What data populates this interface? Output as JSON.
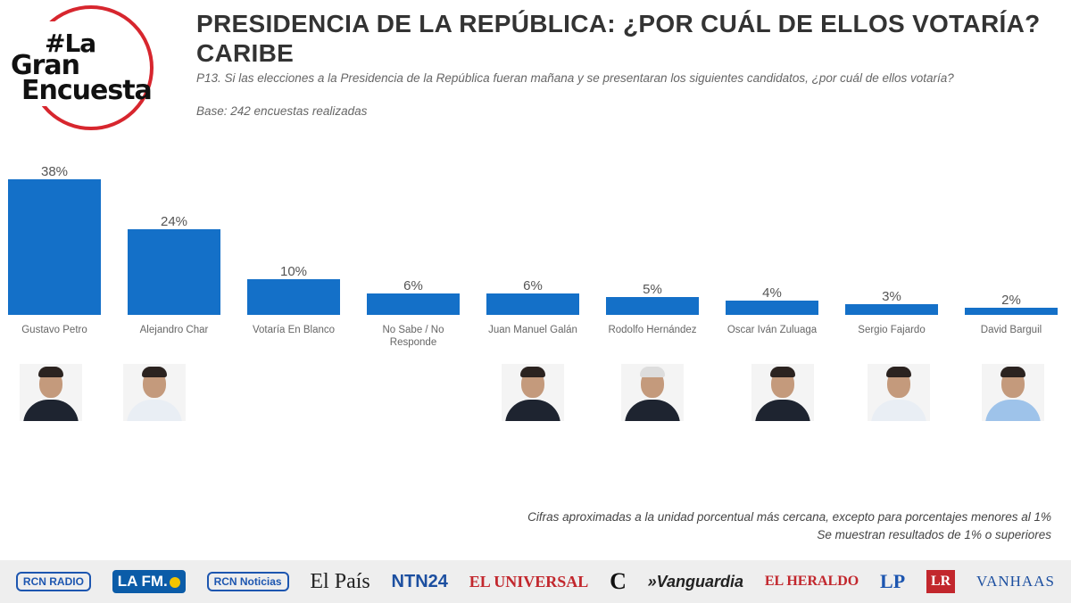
{
  "logo": {
    "line1": "#La",
    "line2": "Gran",
    "line3": "Encuesta"
  },
  "header": {
    "title_line1": "PRESIDENCIA DE LA REPÚBLICA: ¿POR CUÁL DE ELLOS VOTARÍA?",
    "title_line2": "CARIBE",
    "question": "P13. Si las elecciones a la Presidencia de la República fueran mañana y se presentaran los siguientes candidatos, ¿por cuál de ellos votaría?",
    "base": "Base: 242 encuestas realizadas"
  },
  "chart_data": {
    "type": "bar",
    "title": "PRESIDENCIA DE LA REPÚBLICA: ¿POR CUÁL DE ELLOS VOTARÍA? CARIBE",
    "categories": [
      "Gustavo Petro",
      "Alejandro Char",
      "Votaría En Blanco",
      "No Sabe / No Responde",
      "Juan Manuel Galán",
      "Rodolfo Hernández",
      "Oscar Iván Zuluaga",
      "Sergio Fajardo",
      "David Barguil"
    ],
    "category_lines": [
      [
        "Gustavo Petro"
      ],
      [
        "Alejandro Char"
      ],
      [
        "Votaría En Blanco"
      ],
      [
        "No Sabe / No",
        "Responde"
      ],
      [
        "Juan Manuel Galán"
      ],
      [
        "Rodolfo Hernández"
      ],
      [
        "Oscar Iván Zuluaga"
      ],
      [
        "Sergio Fajardo"
      ],
      [
        "David Barguil"
      ]
    ],
    "values": [
      38,
      24,
      10,
      6,
      6,
      5,
      4,
      3,
      2
    ],
    "value_labels": [
      "38%",
      "24%",
      "10%",
      "6%",
      "6%",
      "5%",
      "4%",
      "3%",
      "2%"
    ],
    "unit": "%",
    "ylim": [
      0,
      40
    ],
    "bar_color": "#1470c8",
    "grid": false
  },
  "photos": [
    "candidate-photo-gustavo-petro",
    "candidate-photo-alejandro-char",
    "candidate-photo-juan-manuel-galan",
    "candidate-photo-rodolfo-hernandez",
    "candidate-photo-oscar-ivan-zuluaga",
    "candidate-photo-sergio-fajardo",
    "candidate-photo-david-barguil"
  ],
  "footnote": {
    "line1": "Cifras aproximadas a la unidad porcentual más cercana, excepto para porcentajes menores al 1%",
    "line2": "Se muestran resultados de 1% o superiores"
  },
  "media": {
    "rcn_radio": "RCN RADIO",
    "lafm": "LA FM.",
    "rcn_noticias": "RCN Noticias",
    "el_pais": "El País",
    "ntn24": "NTN24",
    "el_universal": "EL UNIVERSAL",
    "c": "C",
    "vanguardia": "»Vanguardia",
    "el_heraldo": "EL HERALDO",
    "lp": "LP",
    "lr": "LR",
    "vanhaas": "VANHAAS"
  }
}
